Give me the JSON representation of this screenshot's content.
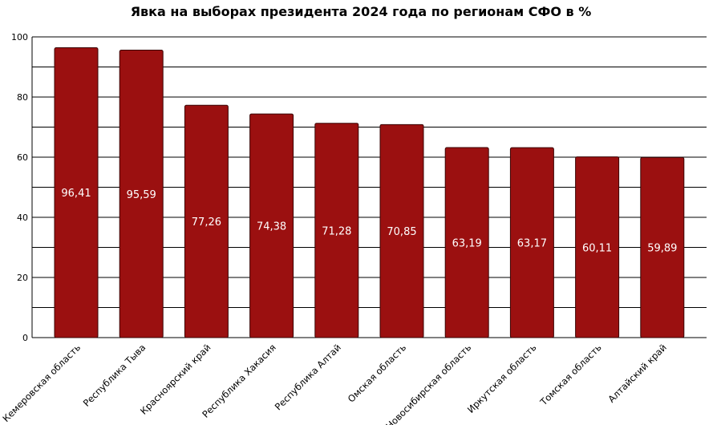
{
  "chart_data": {
    "type": "bar",
    "title": "Явка на выборах президента 2024 года по регионам СФО в %",
    "xlabel": "",
    "ylabel": "",
    "ylim": [
      0,
      100
    ],
    "yticks": [
      0,
      20,
      40,
      60,
      80,
      100
    ],
    "grid_step": 10,
    "grid": true,
    "categories": [
      "Кемеровская область",
      "Республика Тыва",
      "Красноярский край",
      "Республика Хакасия",
      "Республика Алтай",
      "Омская область",
      "Новосибирская область",
      "Иркутская область",
      "Томская область",
      "Алтайский край"
    ],
    "values": [
      96.41,
      95.59,
      77.26,
      74.38,
      71.28,
      70.85,
      63.19,
      63.17,
      60.11,
      59.89
    ],
    "data_labels": [
      "96,41",
      "95,59",
      "77,26",
      "74,38",
      "71,28",
      "70,85",
      "63,19",
      "63,17",
      "60,11",
      "59,89"
    ],
    "bar_color": "#9b1010"
  }
}
